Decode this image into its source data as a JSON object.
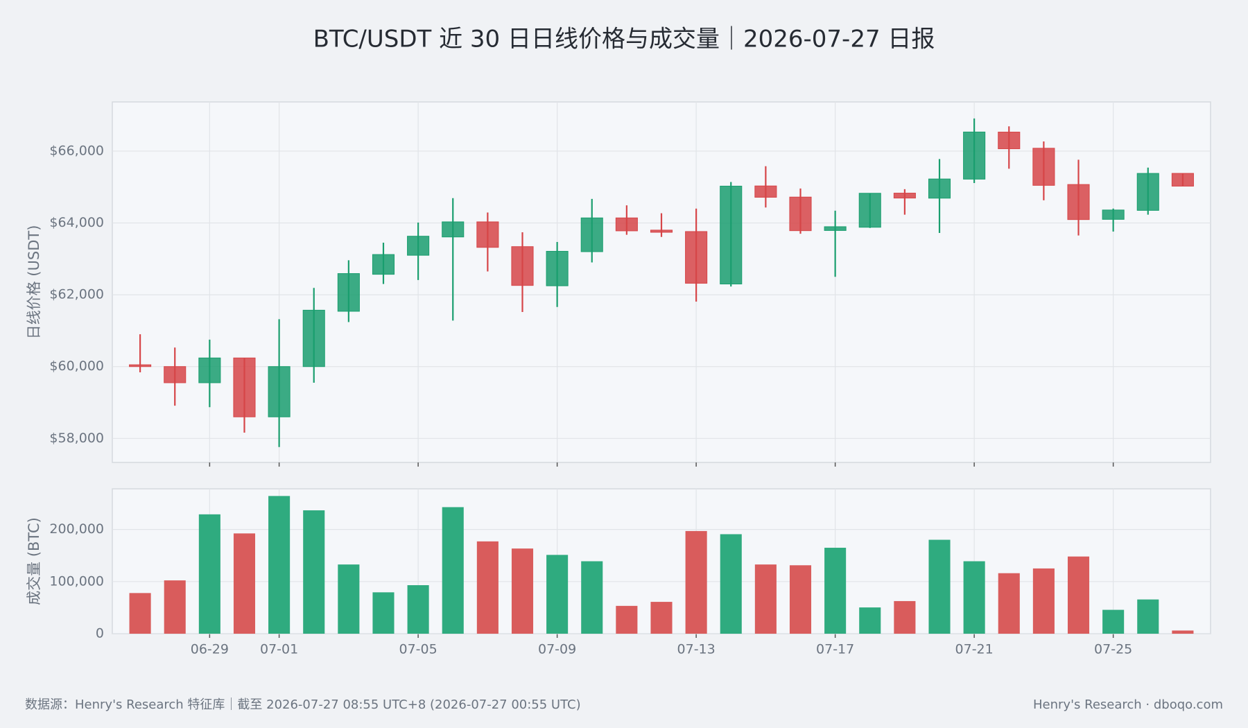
{
  "title": "BTC/USDT 近 30 日日线价格与成交量｜2026-07-27 日报",
  "footer_left": "数据源：Henry's Research 特征库｜截至 2026-07-27 08:55 UTC+8 (2026-07-27 00:55 UTC)",
  "footer_right": "Henry's Research · dboqo.com",
  "chart_data": [
    {
      "type": "candlestick",
      "ylabel": "日线价格 (USDT)",
      "up_color": "#1a9e6e",
      "down_color": "#d64548",
      "grid": true,
      "ylim": [
        57330,
        67370
      ],
      "yticks": [
        {
          "value": 58000,
          "label": "$58,000"
        },
        {
          "value": 60000,
          "label": "$60,000"
        },
        {
          "value": 62000,
          "label": "$62,000"
        },
        {
          "value": 64000,
          "label": "$64,000"
        },
        {
          "value": 66000,
          "label": "$66,000"
        }
      ],
      "open": [
        60050,
        60000,
        59550,
        60240,
        58600,
        60000,
        61540,
        62570,
        63100,
        63610,
        64030,
        63340,
        62250,
        63200,
        64140,
        63800,
        63760,
        62300,
        65030,
        64720,
        63790,
        63880,
        64830,
        64690,
        65220,
        66530,
        66080,
        65070,
        64100,
        64350,
        65380
      ],
      "high": [
        60900,
        60530,
        60750,
        60240,
        61320,
        62190,
        62960,
        63450,
        64010,
        64690,
        64290,
        63740,
        63470,
        64670,
        64490,
        64270,
        64400,
        65140,
        65580,
        64960,
        64340,
        64830,
        64940,
        65780,
        66910,
        66690,
        66270,
        65760,
        64400,
        65540,
        65380
      ],
      "low": [
        59840,
        58910,
        58870,
        58160,
        57760,
        59550,
        61240,
        62300,
        62410,
        61280,
        62650,
        61520,
        61660,
        62900,
        63670,
        63610,
        61810,
        62230,
        64430,
        63700,
        62500,
        63860,
        64230,
        63720,
        65110,
        65510,
        64630,
        63650,
        63760,
        64230,
        65025
      ],
      "close": [
        60000,
        59550,
        60240,
        58600,
        60000,
        61570,
        62590,
        63120,
        63630,
        64030,
        63320,
        62260,
        63210,
        64140,
        63780,
        63740,
        62320,
        65025,
        64715,
        63785,
        63895,
        64826,
        64693,
        65224,
        66532,
        66066,
        65047,
        64094,
        64360,
        65379,
        65025
      ]
    },
    {
      "type": "bar",
      "ylabel": "成交量 (BTC)",
      "up_color": "#2fab7f",
      "down_color": "#d95c5c",
      "grid": true,
      "x": [
        null,
        null,
        "06-29",
        null,
        "07-01",
        null,
        null,
        null,
        "07-05",
        null,
        null,
        null,
        "07-09",
        null,
        null,
        null,
        "07-13",
        null,
        null,
        null,
        "07-17",
        null,
        null,
        null,
        "07-21",
        null,
        null,
        null,
        "07-25",
        null,
        null
      ],
      "ylim": [
        0,
        278000
      ],
      "yticks": [
        0,
        {
          "value": 100000,
          "label": "100,000"
        },
        {
          "value": 200000,
          "label": "200,000"
        }
      ],
      "values": [
        78000,
        102300,
        229000,
        192400,
        264200,
        236700,
        132800,
        79400,
        93100,
        242800,
        177100,
        163400,
        151200,
        139000,
        53400,
        61100,
        197000,
        190900,
        132800,
        131300,
        164900,
        50400,
        62600,
        180200,
        139000,
        116100,
        125200,
        148100,
        45800,
        65700,
        6100
      ]
    }
  ]
}
